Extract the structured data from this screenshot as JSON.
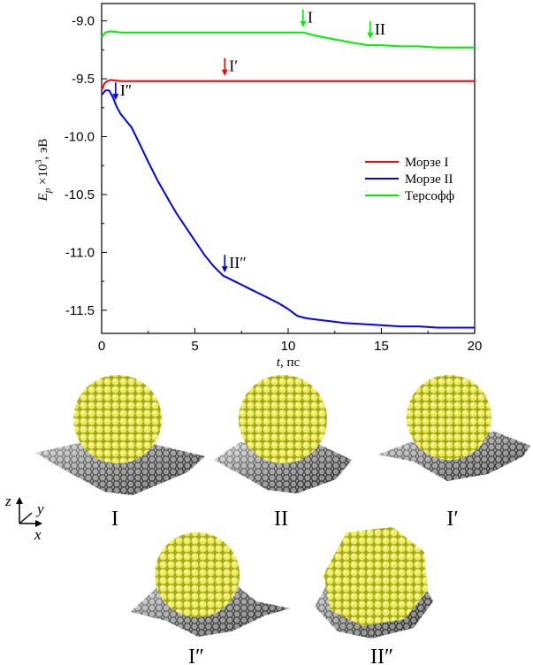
{
  "chart_data": {
    "type": "line",
    "xlabel_var": "t",
    "xlabel_unit": ", пс",
    "ylabel_var": "E",
    "ylabel_sub": "p",
    "ylabel_mult": " ×10",
    "ylabel_exp": "3",
    "ylabel_unit": ", эВ",
    "xlim": [
      0,
      20
    ],
    "ylim": [
      -11.7,
      -8.85
    ],
    "x_ticks": [
      0,
      5,
      10,
      15,
      20
    ],
    "y_ticks": [
      -9.0,
      -9.5,
      -10.0,
      -10.5,
      -11.0,
      -11.5
    ],
    "x_tick_labels": [
      "0",
      "5",
      "10",
      "15",
      "20"
    ],
    "y_tick_labels": [
      "-9.0",
      "-9.5",
      "-10.0",
      "-10.5",
      "-11.0",
      "-11.5"
    ],
    "grid": false,
    "legend_position": "right",
    "series": [
      {
        "name": "Морзе I",
        "color": "#ff0000",
        "x": [
          0,
          0.15,
          0.3,
          0.5,
          1,
          2,
          5,
          10,
          15,
          20
        ],
        "y": [
          -9.6,
          -9.54,
          -9.52,
          -9.51,
          -9.52,
          -9.52,
          -9.52,
          -9.52,
          -9.52,
          -9.52
        ]
      },
      {
        "name": "Морзе II",
        "color": "#0000ff",
        "x": [
          0,
          0.2,
          0.4,
          0.6,
          0.8,
          1.0,
          1.3,
          1.6,
          2.0,
          2.5,
          3.0,
          3.5,
          4.0,
          4.5,
          5.0,
          5.5,
          6.0,
          6.5,
          7.0,
          7.5,
          8.0,
          8.5,
          9.0,
          9.5,
          10.0,
          10.5,
          11.0,
          12.0,
          13.0,
          14.0,
          15.0,
          16.0,
          17.0,
          18.0,
          19.0,
          20.0
        ],
        "y": [
          -9.64,
          -9.6,
          -9.6,
          -9.66,
          -9.74,
          -9.8,
          -9.86,
          -9.92,
          -10.05,
          -10.22,
          -10.38,
          -10.52,
          -10.66,
          -10.78,
          -10.9,
          -11.02,
          -11.12,
          -11.2,
          -11.24,
          -11.28,
          -11.32,
          -11.36,
          -11.4,
          -11.44,
          -11.49,
          -11.55,
          -11.57,
          -11.59,
          -11.61,
          -11.62,
          -11.63,
          -11.64,
          -11.64,
          -11.65,
          -11.65,
          -11.65
        ]
      },
      {
        "name": "Терсофф",
        "color": "#00ee00",
        "x": [
          0,
          0.2,
          0.5,
          1,
          2,
          4,
          6,
          8,
          10,
          10.8,
          11.5,
          12.5,
          13.5,
          14.3,
          15,
          16,
          17,
          18,
          19,
          20
        ],
        "y": [
          -9.14,
          -9.1,
          -9.09,
          -9.1,
          -9.1,
          -9.1,
          -9.1,
          -9.1,
          -9.1,
          -9.1,
          -9.13,
          -9.16,
          -9.19,
          -9.21,
          -9.21,
          -9.22,
          -9.22,
          -9.23,
          -9.23,
          -9.23
        ]
      }
    ],
    "annotations": [
      {
        "label": "I",
        "x": 10.8,
        "y": -9.1,
        "color": "#00ee00"
      },
      {
        "label": "II",
        "x": 14.4,
        "y": -9.2,
        "color": "#00ee00"
      },
      {
        "label": "I′",
        "x": 6.6,
        "y": -9.52,
        "color": "#ff0000"
      },
      {
        "label": "I″",
        "x": 0.75,
        "y": -9.73,
        "color": "#0000ff"
      },
      {
        "label": "II″",
        "x": 6.6,
        "y": -11.22,
        "color": "#0000ff"
      }
    ]
  },
  "snapshots": {
    "axes_labels": {
      "z": "z",
      "y": "y",
      "x": "x"
    },
    "panels": [
      {
        "label": "I"
      },
      {
        "label": "II"
      },
      {
        "label": "I′"
      },
      {
        "label": "I″"
      },
      {
        "label": "II″"
      }
    ],
    "colors": {
      "cluster": "#e2e24a",
      "cluster_dark": "#8f8f10",
      "sheet": "#555555"
    }
  }
}
